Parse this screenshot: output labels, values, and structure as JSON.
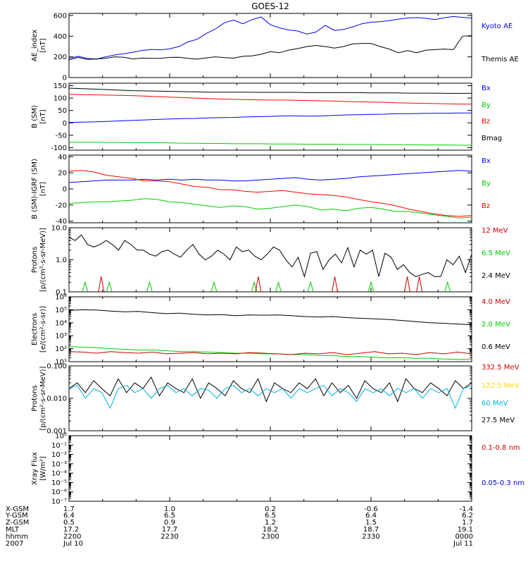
{
  "title": "GOES-12",
  "chart_data": [
    {
      "type": "line",
      "ylabel": "AE_index\n[nT]",
      "ylim": [
        0,
        620
      ],
      "yticks": [
        0,
        200,
        400,
        600
      ],
      "tick_labels": [
        "0",
        "200",
        "400",
        "600"
      ],
      "series": [
        {
          "name": "Kyoto AE",
          "color": "#0000ff",
          "values": [
            185,
            205,
            185,
            178,
            200,
            218,
            230,
            245,
            262,
            272,
            268,
            278,
            300,
            345,
            370,
            425,
            470,
            530,
            555,
            520,
            560,
            585,
            510,
            480,
            460,
            450,
            420,
            440,
            505,
            455,
            465,
            490,
            520,
            535,
            540,
            550,
            565,
            575,
            580,
            572,
            560,
            578,
            590,
            582,
            575
          ]
        },
        {
          "name": "Themis AE",
          "color": "#000000",
          "values": [
            170,
            195,
            175,
            180,
            185,
            200,
            196,
            180,
            188,
            186,
            185,
            195,
            196,
            185,
            178,
            190,
            200,
            192,
            188,
            205,
            210,
            225,
            250,
            240,
            265,
            280,
            300,
            310,
            300,
            285,
            300,
            325,
            330,
            330,
            300,
            275,
            240,
            260,
            240,
            265,
            270,
            275,
            270,
            400,
            405
          ]
        }
      ],
      "legend": [
        "Kyoto AE",
        "Themis AE"
      ]
    },
    {
      "type": "line",
      "ylabel": "B (SM)\n[nT]",
      "ylim": [
        -110,
        160
      ],
      "yticks": [
        -100,
        -50,
        0,
        50,
        100,
        150
      ],
      "tick_labels": [
        "-100",
        "-50",
        "0",
        "50",
        "100",
        "150"
      ],
      "series": [
        {
          "name": "Bx",
          "color": "#0000ff",
          "values": [
            2,
            3,
            4,
            6,
            8,
            10,
            12,
            14,
            16,
            17,
            18,
            20,
            21,
            22,
            24,
            25,
            26,
            28,
            28,
            27,
            28,
            30,
            32,
            33,
            34,
            35,
            37,
            37,
            38,
            39,
            39,
            40,
            40
          ]
        },
        {
          "name": "By",
          "color": "#00cc00",
          "values": [
            -78,
            -78,
            -78,
            -79,
            -79,
            -80,
            -80,
            -80,
            -81,
            -82,
            -82,
            -83,
            -83,
            -84,
            -84,
            -84,
            -85,
            -85,
            -85,
            -86,
            -86,
            -86,
            -87,
            -87,
            -87,
            -88,
            -88,
            -88,
            -89,
            -89,
            -89,
            -90,
            -90
          ]
        },
        {
          "name": "Bz",
          "color": "#ff0000",
          "values": [
            115,
            114,
            113,
            112,
            111,
            110,
            108,
            106,
            104,
            102,
            100,
            98,
            96,
            95,
            94,
            93,
            92,
            92,
            91,
            90,
            89,
            88,
            86,
            85,
            84,
            83,
            81,
            80,
            79,
            78,
            77,
            76,
            76
          ]
        },
        {
          "name": "Bmag",
          "color": "#000000",
          "values": [
            140,
            138,
            136,
            134,
            132,
            130,
            129,
            128,
            127,
            126,
            125,
            124,
            124,
            124,
            124,
            123,
            123,
            123,
            123,
            122,
            122,
            122,
            122,
            122,
            121,
            121,
            121,
            120,
            120,
            120,
            119,
            119,
            119
          ]
        }
      ],
      "legend": [
        "Bx",
        "By",
        "Bz",
        "Bmag"
      ]
    },
    {
      "type": "line",
      "ylabel": "B (SM)-IGRF (SM)\n[nT]",
      "ylim": [
        -42,
        42
      ],
      "yticks": [
        -40,
        -20,
        0,
        20,
        40
      ],
      "tick_labels": [
        "-40",
        "-20",
        "0",
        "20",
        "40"
      ],
      "series": [
        {
          "name": "Bx",
          "color": "#0000ff",
          "values": [
            8,
            9,
            10,
            11,
            11,
            11,
            12,
            11,
            12,
            11,
            12,
            11,
            11,
            10,
            10,
            11,
            12,
            13,
            14,
            12,
            11,
            12,
            13,
            15,
            16,
            17,
            18,
            19,
            20,
            21,
            22,
            23,
            22
          ]
        },
        {
          "name": "By",
          "color": "#00cc00",
          "values": [
            -18,
            -17,
            -16,
            -16,
            -15,
            -14,
            -12,
            -13,
            -16,
            -17,
            -19,
            -21,
            -23,
            -21,
            -22,
            -25,
            -24,
            -22,
            -20,
            -22,
            -26,
            -25,
            -27,
            -24,
            -23,
            -25,
            -28,
            -28,
            -30,
            -32,
            -34,
            -36,
            -35
          ]
        },
        {
          "name": "Bz",
          "color": "#ff0000",
          "values": [
            22,
            23,
            21,
            17,
            15,
            13,
            10,
            10,
            9,
            6,
            3,
            2,
            -1,
            -1,
            -3,
            -4,
            -3,
            -2,
            -4,
            -6,
            -7,
            -8,
            -10,
            -13,
            -16,
            -18,
            -21,
            -25,
            -28,
            -31,
            -33,
            -34,
            -33
          ]
        }
      ],
      "legend": [
        "Bx",
        "By",
        "Bz"
      ]
    },
    {
      "type": "line",
      "yscale": "log",
      "ylabel": "Protons\n[p/(cm²-s-sr-MeV)]",
      "ylim": [
        0.1,
        10
      ],
      "yticks": [
        0.1,
        1,
        10
      ],
      "tick_labels": [
        "0.1",
        "1.0",
        "10.0"
      ],
      "series": [
        {
          "name": "2.4 MeV",
          "color": "#000000",
          "values": [
            5,
            4,
            6,
            3,
            2.5,
            3,
            4,
            3,
            2,
            4,
            3,
            2,
            2,
            1.5,
            1.3,
            1.8,
            2,
            1.5,
            1.2,
            2,
            3,
            1.5,
            1,
            1.3,
            2,
            1.5,
            1,
            2.5,
            1.8,
            2,
            1.3,
            1,
            1.5,
            2.5,
            2,
            1,
            0.6,
            1.2,
            0.3,
            1.6,
            1.8,
            0.5,
            1,
            1.5,
            0.8,
            2.4,
            0.6,
            2,
            1.5,
            2,
            0.3,
            1.6,
            1.2,
            0.5,
            0.7,
            0.4,
            0.3,
            0.35,
            0.4,
            0.3,
            0.3,
            1,
            0.7,
            1.3,
            0.4,
            1.5
          ]
        },
        {
          "name": "6.5 MeV",
          "color": "#00cc00",
          "values": [
            0.2,
            0.2
          ]
        },
        {
          "name": "12 MeV",
          "color": "#cc0000",
          "values": [
            0.3,
            0.12
          ]
        }
      ],
      "legend": [
        "12 MeV",
        "6.5 MeV",
        "2.4 MeV"
      ]
    },
    {
      "type": "line",
      "yscale": "log",
      "ylabel": "Electrons\n[e/(cm²-s-sr)]",
      "ylim": [
        10,
        1000000
      ],
      "yticks": [
        10,
        100,
        1000,
        10000,
        100000,
        1000000
      ],
      "tick_labels": [
        "10¹",
        "10²",
        "10³",
        "10⁴",
        "10⁵",
        "10⁶"
      ],
      "series": [
        {
          "name": "0.6 MeV",
          "color": "#000000",
          "values": [
            90000,
            100000,
            95000,
            80000,
            70000,
            75000,
            60000,
            50000,
            55000,
            45000,
            40000,
            42000,
            35000,
            40000,
            38000,
            40000,
            35000,
            30000,
            28000,
            30000,
            25000,
            22000,
            20000,
            18000,
            15000,
            12000,
            10000,
            9000,
            8000,
            7000
          ]
        },
        {
          "name": "2.0 MeV",
          "color": "#00cc00",
          "values": [
            150,
            130,
            120,
            100,
            90,
            80,
            80,
            70,
            60,
            60,
            55,
            50,
            45,
            45,
            40,
            40,
            35,
            35,
            30,
            30,
            25,
            25,
            22,
            20,
            20,
            18,
            18,
            16,
            15,
            15
          ]
        },
        {
          "name": "4.0 MeV",
          "color": "#cc0000",
          "values": [
            60,
            55,
            45,
            60,
            50,
            45,
            55,
            40,
            45,
            50,
            40,
            45,
            40,
            50,
            45,
            40,
            35,
            45,
            40,
            50,
            35,
            45,
            60,
            40,
            45,
            35,
            50,
            40,
            55,
            40
          ]
        }
      ],
      "legend": [
        "4.0 MeV",
        "2.0 MeV",
        "0.6 MeV"
      ]
    },
    {
      "type": "line",
      "yscale": "log",
      "ylabel": "Protons\n[p/(cm²-s-sr-MeV)]",
      "ylim": [
        0.001,
        0.1
      ],
      "yticks": [
        0.001,
        0.01,
        0.1
      ],
      "tick_labels": [
        "0.001",
        "0.010",
        "0.100"
      ],
      "series": [
        {
          "name": "27.5 MeV",
          "color": "#000000",
          "values": [
            0.02,
            0.03,
            0.015,
            0.035,
            0.02,
            0.012,
            0.04,
            0.015,
            0.03,
            0.02,
            0.045,
            0.012,
            0.03,
            0.02,
            0.015,
            0.04,
            0.01,
            0.03,
            0.02,
            0.012,
            0.035,
            0.02,
            0.015,
            0.04,
            0.008,
            0.03,
            0.02,
            0.015,
            0.03,
            0.02,
            0.04,
            0.012,
            0.03,
            0.015,
            0.025,
            0.01,
            0.035,
            0.02,
            0.015,
            0.03,
            0.008,
            0.04,
            0.02,
            0.015,
            0.03,
            0.02,
            0.012,
            0.035,
            0.02,
            0.03
          ]
        },
        {
          "name": "60 MeV",
          "color": "#00b0e0",
          "values": [
            0.02,
            0.025,
            0.01,
            0.02,
            0.015,
            0.005,
            0.02,
            0.025,
            0.015,
            0.02,
            0.01,
            0.02,
            0.025,
            0.015,
            0.02,
            0.012,
            0.02,
            0.018,
            0.01,
            0.02,
            0.025,
            0.015,
            0.02,
            0.012,
            0.02,
            0.015,
            0.02,
            0.01,
            0.02,
            0.015,
            0.02,
            0.025,
            0.012,
            0.02,
            0.015,
            0.008,
            0.02,
            0.015,
            0.02,
            0.012,
            0.02,
            0.015,
            0.02,
            0.01,
            0.02,
            0.015,
            0.02,
            0.005,
            0.02,
            0.025
          ]
        }
      ],
      "legend": [
        "332.5 MeV",
        "122.5 MeV",
        "60 MeV",
        "27.5 MeV"
      ]
    },
    {
      "type": "line",
      "yscale": "log",
      "ylabel": "Xray Flux\n[W/m²]",
      "ylim": [
        1e-07,
        1
      ],
      "yticks": [
        1e-07,
        1e-06,
        1e-05,
        0.0001,
        0.001,
        0.01,
        0.1,
        1
      ],
      "tick_labels": [
        "10⁻⁷",
        "10⁻⁶",
        "10⁻⁵",
        "10⁻⁴",
        "10⁻³",
        "10⁻²",
        "10⁻¹",
        "10⁰"
      ],
      "series": [],
      "legend": [
        "0.1-0.8 nm",
        "0.05-0.3 nm"
      ]
    }
  ],
  "legend_colors": [
    [
      "#0000ff",
      "#000000"
    ],
    [
      "#0000ff",
      "#00cc00",
      "#ff0000",
      "#000000"
    ],
    [
      "#0000ff",
      "#00cc00",
      "#ff0000"
    ],
    [
      "#cc0000",
      "#00cc00",
      "#000000"
    ],
    [
      "#cc0000",
      "#00cc00",
      "#000000"
    ],
    [
      "#cc0000",
      "#ffd800",
      "#00b0e0",
      "#000000"
    ],
    [
      "#cc0000",
      "#0000cc"
    ]
  ],
  "ephemeris": {
    "labels": [
      "X-GSM",
      "Y-GSM",
      "Z-GSM",
      "MLT",
      "hhmm",
      "2007"
    ],
    "columns": [
      [
        "1.7",
        "6.4",
        "0.5",
        "17.2",
        "2200",
        "Jul 10"
      ],
      [
        "1.0",
        "6.5",
        "0.9",
        "17.7",
        "2230",
        ""
      ],
      [
        "0.2",
        "6.5",
        "1.2",
        "18.2",
        "2300",
        ""
      ],
      [
        "-0.6",
        "6.4",
        "1.5",
        "18.7",
        "2330",
        ""
      ],
      [
        "-1.4",
        "6.2",
        "1.7",
        "19.1",
        "0000",
        "Jul 11"
      ]
    ]
  }
}
